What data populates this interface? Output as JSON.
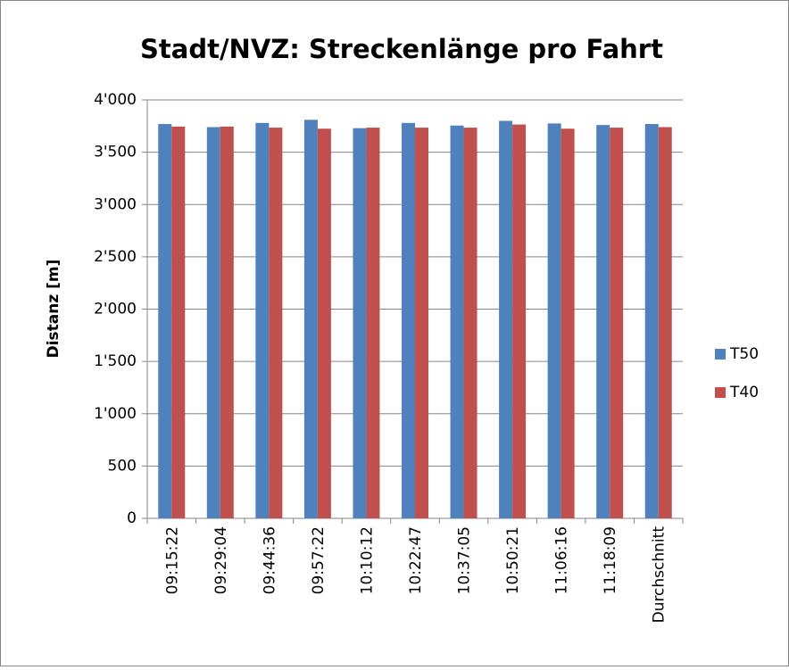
{
  "chart_data": {
    "type": "bar",
    "title": "Stadt/NVZ: Streckenlänge pro Fahrt",
    "y_label": "Distanz [m]",
    "categories": [
      "09:15:22",
      "09:29:04",
      "09:44:36",
      "09:57:22",
      "10:10:12",
      "10:22:47",
      "10:37:05",
      "10:50:21",
      "11:06:16",
      "11:18:09",
      "Durchschnitt"
    ],
    "series": [
      {
        "name": "T50",
        "color": "#4f81bd",
        "values": [
          3770,
          3740,
          3780,
          3810,
          3730,
          3780,
          3755,
          3800,
          3775,
          3760,
          3770
        ]
      },
      {
        "name": "T40",
        "color": "#c0504d",
        "values": [
          3745,
          3745,
          3735,
          3725,
          3735,
          3735,
          3735,
          3765,
          3725,
          3735,
          3740
        ]
      }
    ],
    "ylim": [
      0,
      4000
    ],
    "yticks": [
      0,
      500,
      {
        "value": 1000,
        "label": "1'000"
      },
      {
        "value": 1500,
        "label": "1'500"
      },
      {
        "value": 2000,
        "label": "2'000"
      },
      {
        "value": 2500,
        "label": "2'500"
      },
      {
        "value": 3000,
        "label": "3'000"
      },
      {
        "value": 3500,
        "label": "3'500"
      },
      {
        "value": 4000,
        "label": "4'000"
      }
    ],
    "grid": true,
    "legend": "right"
  }
}
